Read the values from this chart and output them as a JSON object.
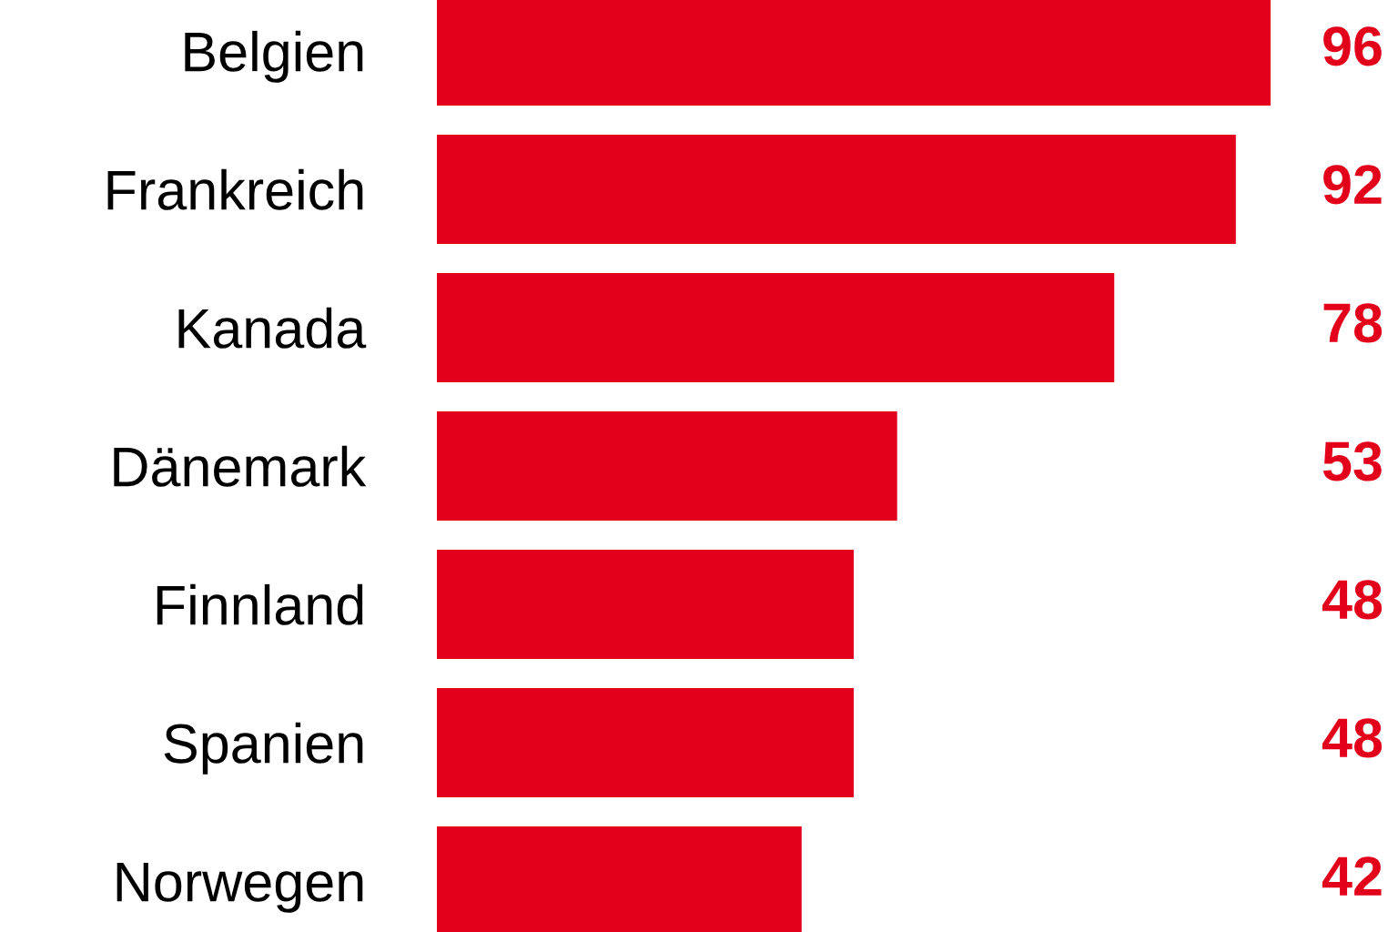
{
  "chart_data": {
    "type": "bar",
    "orientation": "horizontal",
    "categories": [
      "Belgien",
      "Frankreich",
      "Kanada",
      "Dänemark",
      "Finnland",
      "Spanien",
      "Norwegen"
    ],
    "values": [
      96,
      92,
      78,
      53,
      48,
      48,
      42
    ],
    "color": "#e2001a",
    "data_labels": true,
    "tick_labels": "y",
    "grid": false,
    "legend": false
  }
}
